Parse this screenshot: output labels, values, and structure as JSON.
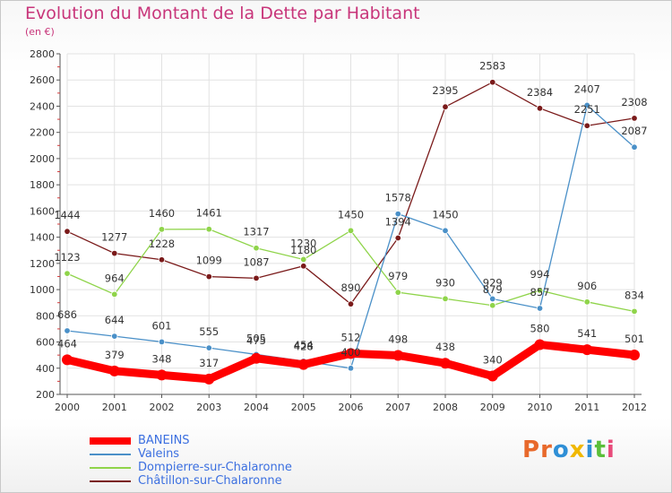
{
  "header": {
    "title": "Evolution du Montant de la Dette par Habitant",
    "subtitle": "(en €)"
  },
  "logo": {
    "text": "Proxiti",
    "colors": [
      "#e8692b",
      "#e8692b",
      "#2f8fd6",
      "#f0b800",
      "#2f8fd6",
      "#5bbf3a",
      "#e84a7a"
    ]
  },
  "chart_data": {
    "type": "line",
    "title": "Evolution du Montant de la Dette par Habitant",
    "subtitle": "(en €)",
    "x": [
      "2000",
      "2001",
      "2002",
      "2003",
      "2004",
      "2005",
      "2006",
      "2007",
      "2008",
      "2009",
      "2010",
      "2011",
      "2012"
    ],
    "ylim": [
      200,
      2800
    ],
    "yticks": [
      200,
      400,
      600,
      800,
      1000,
      1200,
      1400,
      1600,
      1800,
      2000,
      2200,
      2400,
      2600,
      2800
    ],
    "grid": true,
    "legend_position": "bottom-left",
    "series": [
      {
        "name": "BANEINS",
        "color": "#ff0000",
        "values": [
          464,
          379,
          348,
          317,
          475,
          428,
          512,
          498,
          438,
          340,
          580,
          541,
          501
        ],
        "labels": [
          "464",
          "379",
          "348",
          "317",
          "",
          "",
          "512",
          "498",
          "438",
          "340",
          "580",
          "541",
          "501"
        ]
      },
      {
        "name": "Valeins",
        "color": "#4a90c8",
        "values": [
          686,
          644,
          601,
          555,
          505,
          454,
          400,
          1578,
          1450,
          929,
          857,
          2407,
          2087
        ],
        "labels": [
          "686",
          "644",
          "601",
          "555",
          "505",
          "454",
          "400",
          "1578",
          "1450",
          "929",
          "857",
          "2407",
          "2087"
        ]
      },
      {
        "name": "Dompierre-sur-Chalaronne",
        "color": "#8fd44a",
        "values": [
          1123,
          964,
          1460,
          1461,
          1317,
          1230,
          1450,
          979,
          930,
          879,
          994,
          906,
          834
        ],
        "labels": [
          "1123",
          "964",
          "1460",
          "1461",
          "1317",
          "1230",
          "1450",
          "979",
          "930",
          "879",
          "994",
          "906",
          "834"
        ]
      },
      {
        "name": "Châtillon-sur-Chalaronne",
        "color": "#7a1a1a",
        "values": [
          1444,
          1277,
          1228,
          1099,
          1087,
          1180,
          890,
          1394,
          2395,
          2583,
          2384,
          2251,
          2308
        ],
        "labels": [
          "1444",
          "1277",
          "1228",
          "1099",
          "1087",
          "1180",
          "890",
          "1394",
          "2395",
          "2583",
          "2384",
          "2251",
          "2308"
        ]
      }
    ]
  }
}
